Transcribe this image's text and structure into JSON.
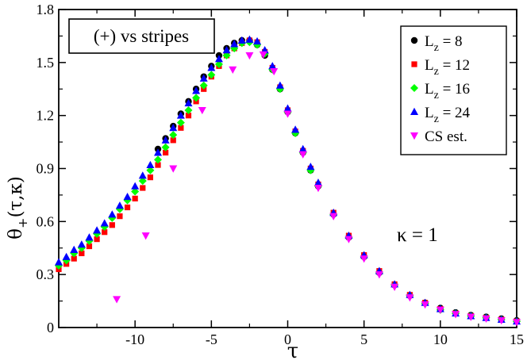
{
  "chart_data": {
    "type": "scatter",
    "title": "",
    "annotation_box": "(+) vs stripes",
    "annotation_kappa": "κ = 1",
    "xlabel": "τ",
    "ylabel": {
      "main": "θ",
      "sub": "+",
      "args": "(τ,κ)"
    },
    "xlim": [
      -15,
      15
    ],
    "ylim": [
      0,
      1.8
    ],
    "xticks": [
      -10,
      -5,
      0,
      5,
      10,
      15
    ],
    "xtick_labels": [
      "-10",
      "-5",
      "0",
      "5",
      "10",
      "15"
    ],
    "yticks": [
      0,
      0.3,
      0.6,
      0.9,
      1.2,
      1.5,
      1.8
    ],
    "ytick_labels": [
      "0",
      "0.3",
      "0.6",
      "0.9",
      "1.2",
      "1.5",
      "1.8"
    ],
    "grid": false,
    "legend_position": "top-right",
    "series": [
      {
        "name": "Lz = 8",
        "label_main": "L",
        "label_sub": "z",
        "label_rest": " = 8",
        "marker": "circle",
        "color": "#000000",
        "x": [
          -8.5,
          -8.0,
          -7.5,
          -7.0,
          -6.5,
          -6.0,
          -5.5,
          -5.0,
          -4.5,
          -4.0,
          -3.5,
          -3.0,
          -2.5,
          -2.0,
          -1.5,
          -1.0,
          -0.5,
          0.0,
          0.5,
          1.0,
          1.5,
          2.0,
          3.0,
          4.0,
          5.0,
          6.0,
          7.0,
          8.0,
          9.0,
          10.0,
          11.0,
          12.0,
          13.0,
          14.0,
          15.0
        ],
        "y": [
          1.01,
          1.07,
          1.14,
          1.21,
          1.28,
          1.35,
          1.42,
          1.48,
          1.54,
          1.58,
          1.61,
          1.625,
          1.625,
          1.6,
          1.54,
          1.46,
          1.35,
          1.22,
          1.1,
          0.99,
          0.89,
          0.8,
          0.64,
          0.51,
          0.4,
          0.31,
          0.24,
          0.18,
          0.14,
          0.11,
          0.085,
          0.07,
          0.06,
          0.05,
          0.04
        ]
      },
      {
        "name": "Lz = 12",
        "label_main": "L",
        "label_sub": "z",
        "label_rest": " = 12",
        "marker": "square",
        "color": "#ff0000",
        "x": [
          -15.0,
          -14.5,
          -14.0,
          -13.5,
          -13.0,
          -12.5,
          -12.0,
          -11.5,
          -11.0,
          -10.5,
          -10.0,
          -9.5,
          -9.0,
          -8.5,
          -8.0,
          -7.5,
          -7.0,
          -6.5,
          -6.0,
          -5.5,
          -5.0,
          -4.5,
          -4.0,
          -3.5,
          -3.0,
          -2.5,
          -2.0,
          -1.5,
          -1.0,
          -0.5,
          0.0,
          0.5,
          1.0,
          1.5,
          2.0,
          3.0,
          4.0,
          5.0,
          6.0,
          7.0,
          8.0,
          9.0,
          10.0,
          11.0,
          12.0,
          13.0,
          14.0,
          15.0
        ],
        "y": [
          0.33,
          0.36,
          0.39,
          0.42,
          0.46,
          0.5,
          0.54,
          0.58,
          0.63,
          0.68,
          0.73,
          0.79,
          0.85,
          0.92,
          0.99,
          1.06,
          1.13,
          1.2,
          1.28,
          1.35,
          1.42,
          1.48,
          1.54,
          1.58,
          1.61,
          1.625,
          1.615,
          1.56,
          1.47,
          1.36,
          1.23,
          1.11,
          1.0,
          0.9,
          0.81,
          0.65,
          0.52,
          0.41,
          0.32,
          0.245,
          0.185,
          0.14,
          0.105,
          0.08,
          0.065,
          0.055,
          0.045,
          0.035
        ]
      },
      {
        "name": "Lz = 16",
        "label_main": "L",
        "label_sub": "z",
        "label_rest": " = 16",
        "marker": "diamond",
        "color": "#00ff00",
        "x": [
          -15.0,
          -14.5,
          -14.0,
          -13.5,
          -13.0,
          -12.5,
          -12.0,
          -11.5,
          -11.0,
          -10.5,
          -10.0,
          -9.5,
          -9.0,
          -8.5,
          -8.0,
          -7.5,
          -7.0,
          -6.5,
          -6.0,
          -5.5,
          -5.0,
          -4.5,
          -4.0,
          -3.5,
          -3.0,
          -2.5,
          -2.0,
          -1.5,
          -1.0,
          -0.5,
          0.0,
          0.5,
          1.0,
          1.5,
          2.0,
          3.0,
          4.0,
          5.0,
          6.0,
          7.0,
          8.0,
          9.0,
          10.0,
          11.0,
          12.0,
          13.0,
          14.0,
          15.0
        ],
        "y": [
          0.35,
          0.38,
          0.42,
          0.45,
          0.49,
          0.53,
          0.57,
          0.62,
          0.67,
          0.72,
          0.77,
          0.83,
          0.89,
          0.95,
          1.02,
          1.09,
          1.16,
          1.23,
          1.3,
          1.37,
          1.43,
          1.49,
          1.54,
          1.58,
          1.61,
          1.615,
          1.6,
          1.55,
          1.46,
          1.35,
          1.22,
          1.1,
          0.99,
          0.89,
          0.8,
          0.64,
          0.51,
          0.4,
          0.31,
          0.24,
          0.18,
          0.135,
          0.1,
          0.08,
          0.065,
          0.055,
          0.045,
          0.035
        ]
      },
      {
        "name": "Lz = 24",
        "label_main": "L",
        "label_sub": "z",
        "label_rest": " = 24",
        "marker": "triangle-up",
        "color": "#0000ff",
        "x": [
          -15.0,
          -14.5,
          -14.0,
          -13.5,
          -13.0,
          -12.5,
          -12.0,
          -11.5,
          -11.0,
          -10.5,
          -10.0,
          -9.5,
          -9.0,
          -8.5,
          -8.0,
          -7.5,
          -7.0,
          -6.5,
          -6.0,
          -5.5,
          -5.0,
          -4.5,
          -4.0,
          -3.5,
          -3.0,
          -2.5,
          -2.0,
          -1.5,
          -1.0,
          -0.5,
          0.0,
          0.5,
          1.0,
          1.5,
          2.0,
          3.0,
          4.0,
          5.0,
          6.0,
          7.0,
          8.0,
          9.0,
          10.0,
          11.0,
          12.0,
          13.0,
          14.0,
          15.0
        ],
        "y": [
          0.37,
          0.4,
          0.44,
          0.47,
          0.51,
          0.55,
          0.59,
          0.64,
          0.69,
          0.74,
          0.8,
          0.86,
          0.92,
          0.99,
          1.06,
          1.13,
          1.2,
          1.27,
          1.34,
          1.41,
          1.47,
          1.52,
          1.57,
          1.605,
          1.625,
          1.63,
          1.62,
          1.57,
          1.48,
          1.37,
          1.24,
          1.12,
          1.01,
          0.91,
          0.82,
          0.65,
          0.52,
          0.41,
          0.32,
          0.245,
          0.185,
          0.14,
          0.105,
          0.08,
          0.065,
          0.055,
          0.045,
          0.035
        ]
      },
      {
        "name": "CS est.",
        "label_main": "CS est.",
        "label_sub": "",
        "label_rest": "",
        "marker": "triangle-down",
        "color": "#ff00ff",
        "x": [
          -11.2,
          -9.3,
          -7.5,
          -5.6,
          -3.6,
          -2.5,
          -1.6,
          -0.9,
          0.0,
          1.0,
          2.0,
          3.0,
          4.0,
          5.0,
          6.0,
          7.0,
          8.0,
          9.0,
          10.0,
          11.0,
          12.0,
          13.0,
          14.0,
          15.0
        ],
        "y": [
          0.16,
          0.52,
          0.9,
          1.23,
          1.46,
          1.54,
          1.545,
          1.45,
          1.21,
          0.98,
          0.79,
          0.63,
          0.5,
          0.39,
          0.3,
          0.23,
          0.17,
          0.13,
          0.1,
          0.075,
          0.06,
          0.05,
          0.04,
          0.03
        ]
      }
    ]
  }
}
